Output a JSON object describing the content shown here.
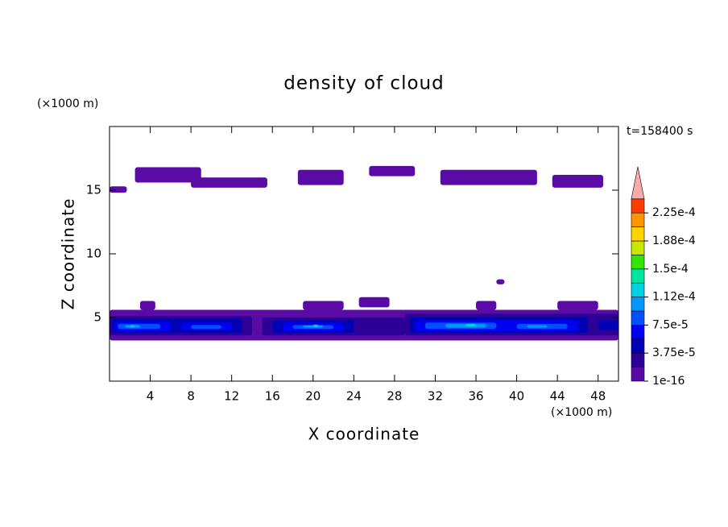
{
  "chart_data": {
    "type": "contour",
    "title": "density of cloud",
    "x_label": "X coordinate",
    "y_label": "Z coordinate",
    "x_unit": "(×1000 m)",
    "y_unit": "(×1000 m)",
    "time_label": "t=158400 s",
    "xlim": [
      0,
      50
    ],
    "ylim": [
      0,
      20
    ],
    "xticks": [
      4,
      8,
      12,
      16,
      20,
      24,
      28,
      32,
      36,
      40,
      44,
      48
    ],
    "yticks": [
      5,
      10,
      15
    ],
    "levels": [
      1e-16,
      1.875e-05,
      3.75e-05,
      5.625e-05,
      7.5e-05,
      9.375e-05,
      0.0001125,
      0.00013125,
      0.00015,
      0.00016875,
      0.0001875,
      0.00020625,
      0.000225
    ],
    "colors": [
      "#5a0aa5",
      "#2d0096",
      "#0000b4",
      "#0000f0",
      "#0050ff",
      "#0096ff",
      "#00d2e6",
      "#00e6a0",
      "#32e600",
      "#c8e600",
      "#ffd200",
      "#ff9600",
      "#ff3c00"
    ],
    "extend_color": "#ffaaaa",
    "colorbar_ticks": [
      {
        "value": 1e-16,
        "label": "1e-16"
      },
      {
        "value": 3.75e-05,
        "label": "3.75e-5"
      },
      {
        "value": 7.5e-05,
        "label": "7.5e-5"
      },
      {
        "value": 0.0001125,
        "label": "1.12e-4"
      },
      {
        "value": 0.00015,
        "label": "1.5e-4"
      },
      {
        "value": 0.0001875,
        "label": "1.88e-4"
      },
      {
        "value": 0.000225,
        "label": "2.25e-4"
      }
    ],
    "patches": [
      {
        "x": [
          0,
          1.7
        ],
        "z": [
          14.8,
          15.3
        ],
        "value": 1e-16
      },
      {
        "x": [
          2.5,
          9
        ],
        "z": [
          15.6,
          16.8
        ],
        "value": 1e-16
      },
      {
        "x": [
          8,
          15.5
        ],
        "z": [
          15.2,
          16.0
        ],
        "value": 1e-16
      },
      {
        "x": [
          18.5,
          23
        ],
        "z": [
          15.4,
          16.6
        ],
        "value": 1e-16
      },
      {
        "x": [
          25.5,
          30
        ],
        "z": [
          16.1,
          16.9
        ],
        "value": 1e-16
      },
      {
        "x": [
          32.5,
          42
        ],
        "z": [
          15.4,
          16.6
        ],
        "value": 1e-16
      },
      {
        "x": [
          43.5,
          48.5
        ],
        "z": [
          15.2,
          16.2
        ],
        "value": 1e-16
      },
      {
        "x": [
          38,
          38.8
        ],
        "z": [
          7.6,
          8.0
        ],
        "value": 1e-16
      },
      {
        "x": [
          0,
          50
        ],
        "z": [
          3.2,
          5.6
        ],
        "value": 1e-16
      },
      {
        "x": [
          3,
          4.5
        ],
        "z": [
          5.6,
          6.3
        ],
        "value": 1e-16
      },
      {
        "x": [
          19,
          23
        ],
        "z": [
          5.6,
          6.3
        ],
        "value": 1e-16
      },
      {
        "x": [
          24.5,
          27.5
        ],
        "z": [
          5.8,
          6.6
        ],
        "value": 1e-16
      },
      {
        "x": [
          36,
          38
        ],
        "z": [
          5.6,
          6.3
        ],
        "value": 1e-16
      },
      {
        "x": [
          44,
          48
        ],
        "z": [
          5.6,
          6.3
        ],
        "value": 1e-16
      },
      {
        "x": [
          0,
          14
        ],
        "z": [
          3.6,
          5.1
        ],
        "value": 1.875e-05
      },
      {
        "x": [
          15,
          29
        ],
        "z": [
          3.6,
          5.0
        ],
        "value": 1.875e-05
      },
      {
        "x": [
          29,
          50
        ],
        "z": [
          3.6,
          5.3
        ],
        "value": 1.875e-05
      },
      {
        "x": [
          0.2,
          13
        ],
        "z": [
          3.8,
          4.9
        ],
        "value": 3.75e-05
      },
      {
        "x": [
          16,
          24
        ],
        "z": [
          3.8,
          4.8
        ],
        "value": 3.75e-05
      },
      {
        "x": [
          29.5,
          47
        ],
        "z": [
          3.8,
          5.0
        ],
        "value": 3.75e-05
      },
      {
        "x": [
          48,
          50
        ],
        "z": [
          4.0,
          4.8
        ],
        "value": 3.75e-05
      },
      {
        "x": [
          0.5,
          6
        ],
        "z": [
          3.9,
          4.7
        ],
        "value": 5.625e-05
      },
      {
        "x": [
          7,
          12
        ],
        "z": [
          4.0,
          4.6
        ],
        "value": 5.625e-05
      },
      {
        "x": [
          17,
          23
        ],
        "z": [
          3.9,
          4.6
        ],
        "value": 5.625e-05
      },
      {
        "x": [
          30,
          46
        ],
        "z": [
          3.9,
          4.8
        ],
        "value": 5.625e-05
      },
      {
        "x": [
          0.8,
          5
        ],
        "z": [
          4.1,
          4.5
        ],
        "value": 7.5e-05
      },
      {
        "x": [
          8,
          11
        ],
        "z": [
          4.1,
          4.4
        ],
        "value": 7.5e-05
      },
      {
        "x": [
          18,
          22
        ],
        "z": [
          4.1,
          4.4
        ],
        "value": 7.5e-05
      },
      {
        "x": [
          31,
          38
        ],
        "z": [
          4.1,
          4.6
        ],
        "value": 7.5e-05
      },
      {
        "x": [
          40,
          45
        ],
        "z": [
          4.1,
          4.5
        ],
        "value": 7.5e-05
      },
      {
        "x": [
          1.5,
          3
        ],
        "z": [
          4.2,
          4.4
        ],
        "value": 9.375e-05
      },
      {
        "x": [
          19,
          21
        ],
        "z": [
          4.2,
          4.4
        ],
        "value": 9.375e-05
      },
      {
        "x": [
          33,
          37
        ],
        "z": [
          4.2,
          4.5
        ],
        "value": 9.375e-05
      },
      {
        "x": [
          41,
          43
        ],
        "z": [
          4.2,
          4.4
        ],
        "value": 9.375e-05
      },
      {
        "x": [
          2,
          2.5
        ],
        "z": [
          4.25,
          4.4
        ],
        "value": 0.0001125
      },
      {
        "x": [
          20,
          20.5
        ],
        "z": [
          4.25,
          4.45
        ],
        "value": 0.0001125
      },
      {
        "x": [
          35,
          36
        ],
        "z": [
          4.3,
          4.5
        ],
        "value": 0.0001125
      }
    ]
  }
}
